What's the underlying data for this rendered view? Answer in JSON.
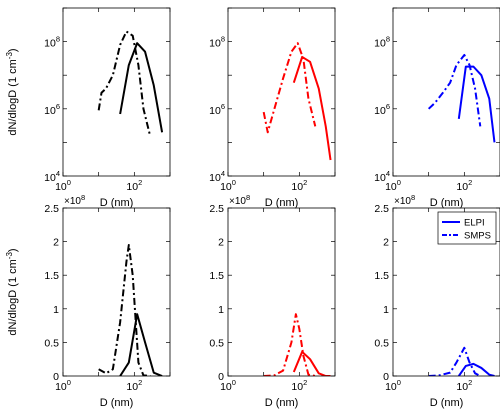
{
  "chart_data": [
    {
      "type": "line",
      "row": "log",
      "color": "#000000",
      "xscale": "log",
      "yscale": "log",
      "xlim": [
        1,
        1000
      ],
      "ylim": [
        10000,
        1000000000
      ],
      "xlabel": "D (nm)",
      "ylabel": "dN/dlogD (1 cm⁻³)",
      "series": [
        {
          "style": "solid",
          "x": [
            40,
            70,
            120,
            200,
            350,
            600
          ],
          "y": [
            700000,
            20000000,
            90000000,
            50000000,
            5000000,
            200000
          ]
        },
        {
          "style": "dashdot",
          "x": [
            10,
            12,
            16,
            25,
            40,
            60,
            90,
            130,
            180,
            280
          ],
          "y": [
            900000,
            3000000,
            4000000,
            10000000,
            80000000,
            200000000,
            150000000,
            20000000,
            1000000,
            150000
          ]
        }
      ]
    },
    {
      "type": "line",
      "row": "log",
      "color": "#ff0000",
      "xscale": "log",
      "yscale": "log",
      "xlim": [
        1,
        1000
      ],
      "ylim": [
        10000,
        1000000000
      ],
      "xlabel": "D (nm)",
      "ylabel": "",
      "series": [
        {
          "style": "solid",
          "x": [
            70,
            120,
            200,
            350,
            550,
            750
          ],
          "y": [
            6000000,
            35000000,
            25000000,
            4000000,
            300000,
            30000
          ]
        },
        {
          "style": "dashdot",
          "x": [
            10,
            13,
            20,
            35,
            60,
            90,
            130,
            180,
            280
          ],
          "y": [
            800000,
            200000,
            1000000,
            8000000,
            50000000,
            90000000,
            30000000,
            2000000,
            300000
          ]
        }
      ]
    },
    {
      "type": "line",
      "row": "log",
      "color": "#0000ff",
      "xscale": "log",
      "yscale": "log",
      "xlim": [
        1,
        1000
      ],
      "ylim": [
        10000,
        1000000000
      ],
      "xlabel": "D (nm)",
      "ylabel": "",
      "series": [
        {
          "style": "solid",
          "x": [
            70,
            110,
            180,
            300,
            500,
            700
          ],
          "y": [
            500000,
            18000000,
            18000000,
            10000000,
            2000000,
            100000
          ]
        },
        {
          "style": "dashdot",
          "x": [
            10,
            15,
            25,
            40,
            60,
            100,
            140,
            200,
            280
          ],
          "y": [
            1000000,
            1500000,
            3000000,
            6000000,
            20000000,
            40000000,
            20000000,
            4000000,
            300000
          ]
        }
      ]
    },
    {
      "type": "line",
      "row": "linear",
      "color": "#000000",
      "xscale": "log",
      "yscale": "linear",
      "xlim": [
        1,
        1000
      ],
      "ylim": [
        0,
        2.5
      ],
      "multiplier": "×10⁸",
      "yticks": [
        "0",
        "0.5",
        "1",
        "1.5",
        "2",
        "2.5"
      ],
      "xlabel": "D (nm)",
      "ylabel": "dN/dlogD (1 cm⁻³)",
      "series": [
        {
          "style": "solid",
          "x": [
            40,
            70,
            120,
            200,
            350,
            600
          ],
          "y": [
            0.0,
            0.2,
            0.92,
            0.5,
            0.05,
            0.0
          ]
        },
        {
          "style": "dashdot",
          "x": [
            10,
            16,
            25,
            40,
            60,
            70,
            90,
            130,
            180,
            280
          ],
          "y": [
            0.1,
            0.04,
            0.1,
            0.8,
            1.7,
            1.95,
            1.5,
            0.2,
            0.01,
            0.0
          ]
        }
      ]
    },
    {
      "type": "line",
      "row": "linear",
      "color": "#ff0000",
      "xscale": "log",
      "yscale": "linear",
      "xlim": [
        1,
        1000
      ],
      "ylim": [
        0,
        2.5
      ],
      "multiplier": "×10⁸",
      "yticks": [
        "0",
        "0.5",
        "1",
        "1.5",
        "2",
        "2.5"
      ],
      "xlabel": "D (nm)",
      "ylabel": "",
      "series": [
        {
          "style": "solid",
          "x": [
            70,
            120,
            200,
            350,
            550,
            750
          ],
          "y": [
            0.06,
            0.36,
            0.25,
            0.04,
            0.0,
            0.0
          ]
        },
        {
          "style": "dashdot",
          "x": [
            10,
            20,
            35,
            60,
            80,
            100,
            130,
            180,
            280
          ],
          "y": [
            0.0,
            0.01,
            0.08,
            0.5,
            0.92,
            0.7,
            0.3,
            0.02,
            0.0
          ]
        }
      ]
    },
    {
      "type": "line",
      "row": "linear",
      "color": "#0000ff",
      "xscale": "log",
      "yscale": "linear",
      "xlim": [
        1,
        1000
      ],
      "ylim": [
        0,
        2.5
      ],
      "multiplier": "×10⁸",
      "yticks": [
        "0",
        "0.5",
        "1",
        "1.5",
        "2",
        "2.5"
      ],
      "xlabel": "D (nm)",
      "ylabel": "",
      "legend": {
        "position": "top-right",
        "entries": [
          {
            "label": "ELPI",
            "style": "solid"
          },
          {
            "label": "SMPS",
            "style": "dashdot"
          }
        ]
      },
      "series": [
        {
          "style": "solid",
          "x": [
            70,
            110,
            180,
            300,
            500,
            700
          ],
          "y": [
            0.0,
            0.15,
            0.18,
            0.12,
            0.02,
            0.0
          ]
        },
        {
          "style": "dashdot",
          "x": [
            10,
            20,
            40,
            60,
            100,
            140,
            200,
            280
          ],
          "y": [
            0.0,
            0.01,
            0.05,
            0.2,
            0.42,
            0.2,
            0.04,
            0.0
          ]
        }
      ]
    }
  ]
}
